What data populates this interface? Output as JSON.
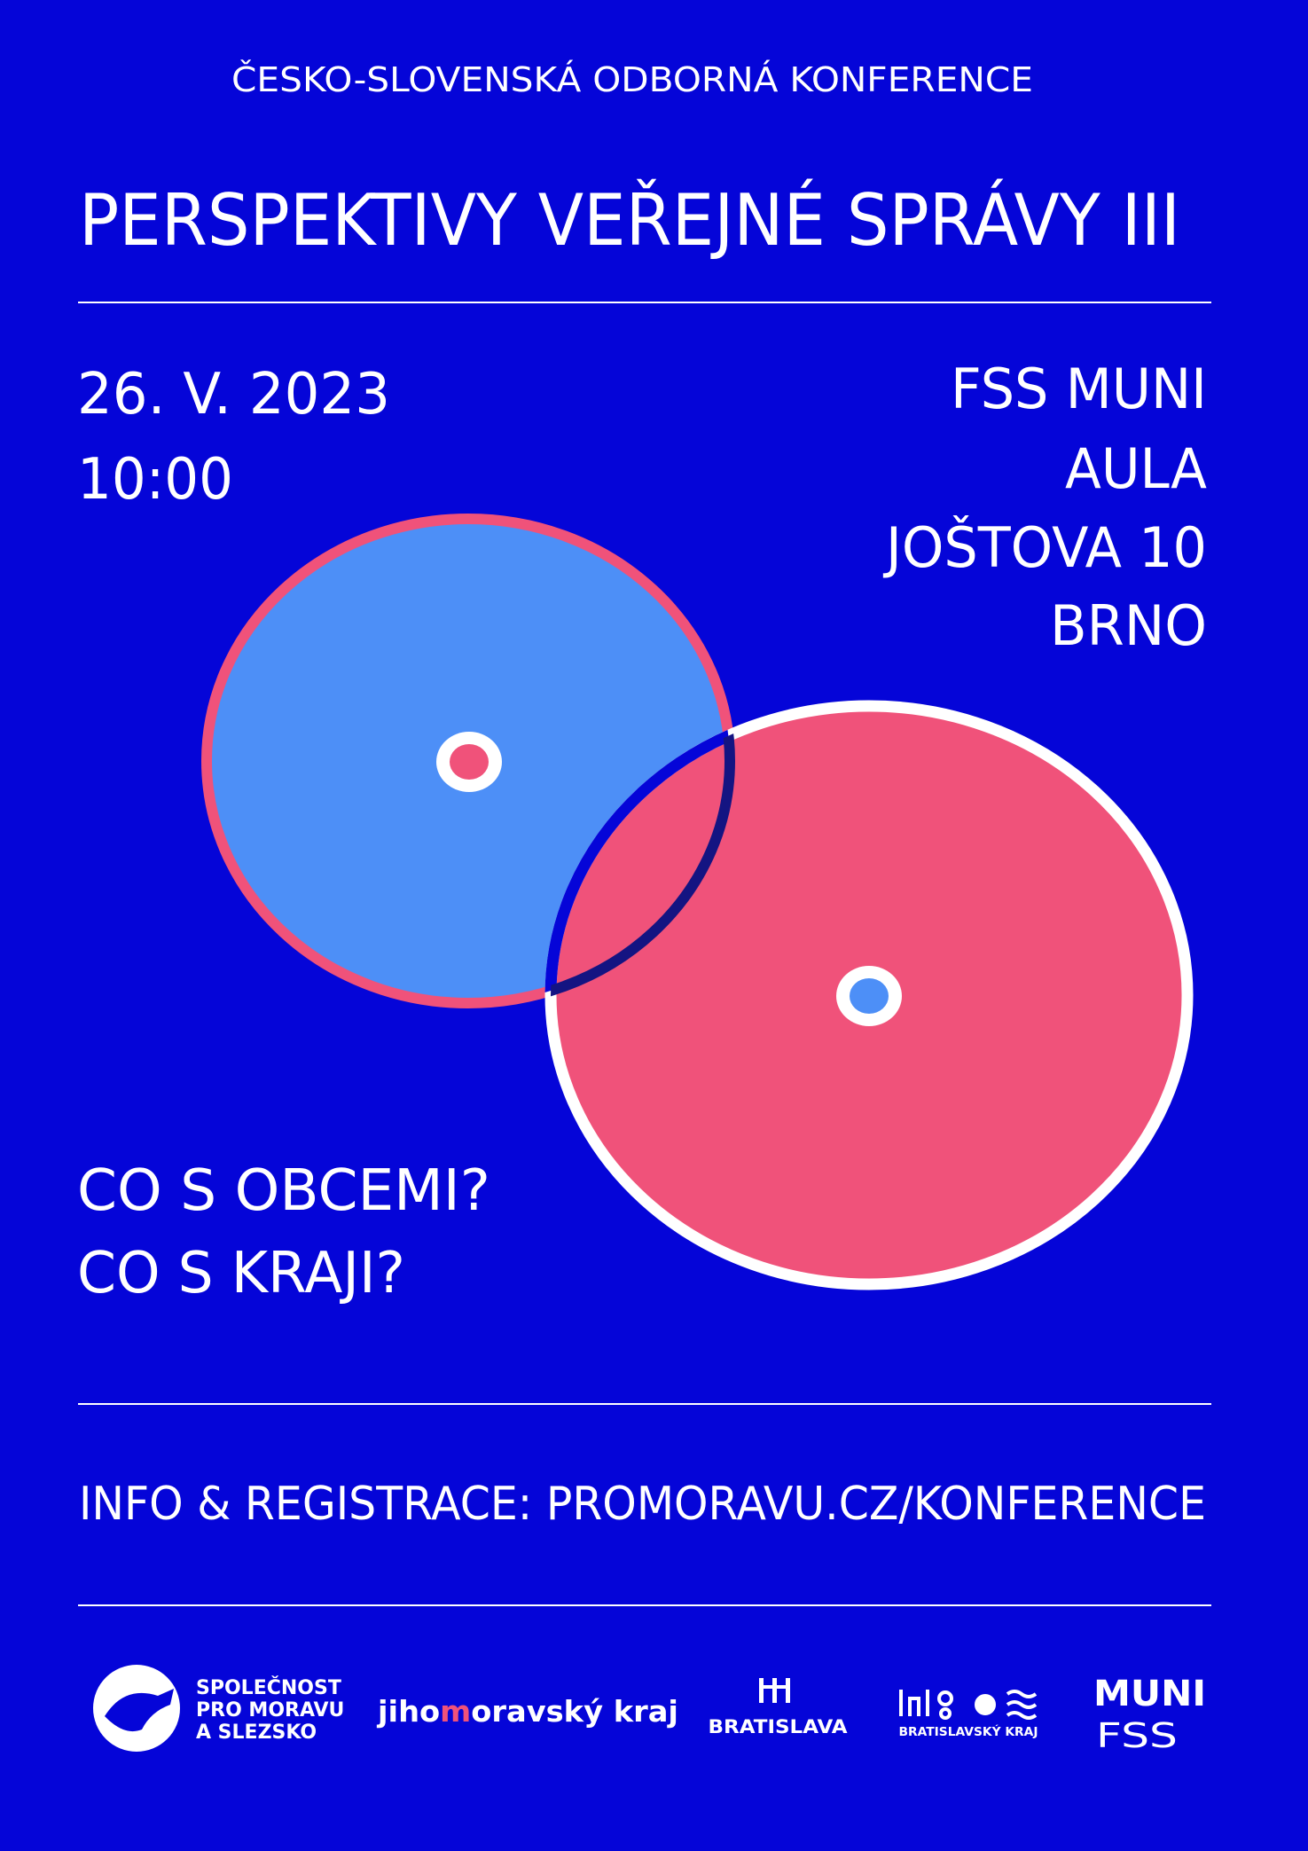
{
  "header": {
    "label": "ČESKO-SLOVENSKÁ ODBORNÁ KONFERENCE",
    "title": "PERSPEKTIVY VEŘEJNÉ SPRÁVY III"
  },
  "date": {
    "lines": [
      "26. V. 2023",
      "10:00"
    ]
  },
  "venue": {
    "lines": [
      "FSS MUNI",
      "AULA",
      "JOŠTOVA 10",
      "BRNO"
    ]
  },
  "questions": [
    "CO S OBCEMI?",
    "CO S KRAJI?"
  ],
  "info": "INFO & REGISTRACE: PROMORAVU.CZ/KONFERENCE",
  "logos": {
    "spolecnost": [
      "SPOLEČNOST",
      "PRO MORAVU",
      "A SLEZSKO"
    ],
    "jihomoravsky": [
      "jiho",
      "m",
      "oravský kraj"
    ],
    "bratislava": "BRATISLAVA",
    "bratislavsky_kraj": "BRATISLAVSKÝ KRAJ",
    "muni": [
      "MUNI",
      "FSS"
    ]
  }
}
